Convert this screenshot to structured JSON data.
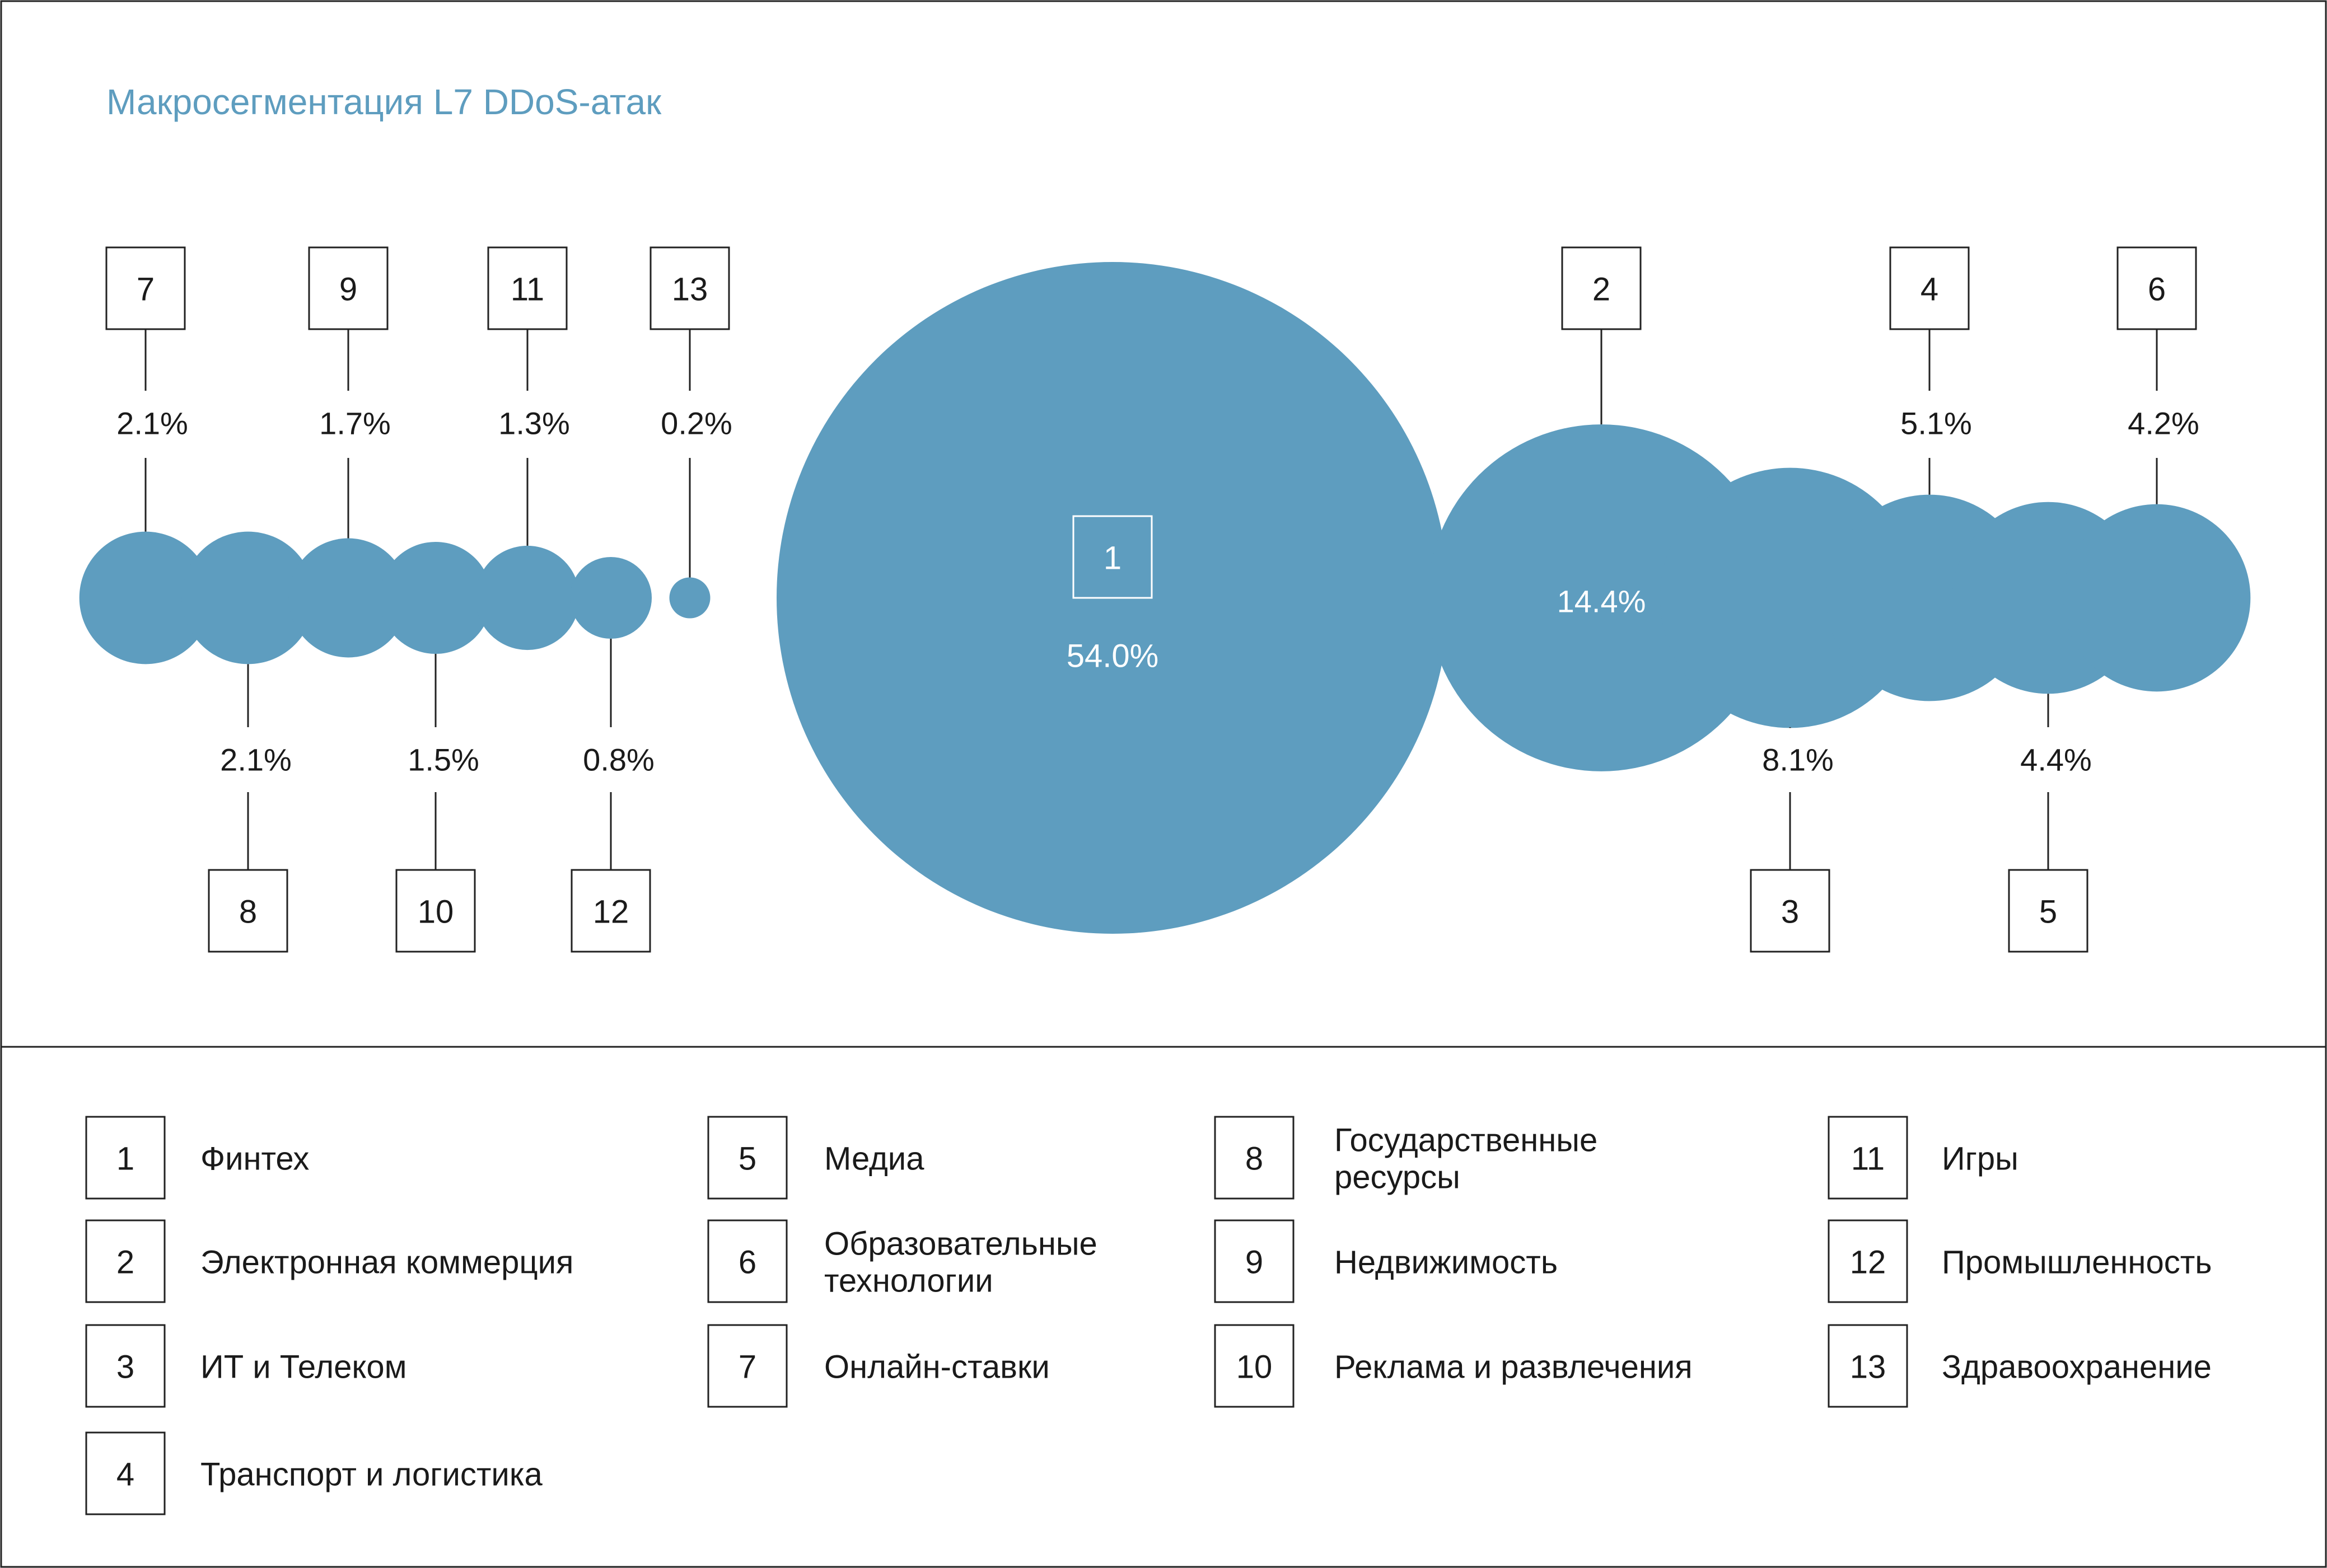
{
  "title": "Макросегментация L7 DDoS-атак",
  "colors": {
    "accent": "#5e9dbf",
    "frame": "#222222",
    "text": "#1a1a1a",
    "bubble_text": "#ffffff",
    "background": "#ffffff"
  },
  "chart_data": {
    "type": "bubble",
    "title": "Макросегментация L7 DDoS-атак",
    "unit": "%",
    "series": [
      {
        "id": "1",
        "value": 54.0,
        "label": "54.0%"
      },
      {
        "id": "2",
        "value": 14.4,
        "label": "14.4%"
      },
      {
        "id": "3",
        "value": 8.1,
        "label": "8.1%"
      },
      {
        "id": "4",
        "value": 5.1,
        "label": "5.1%"
      },
      {
        "id": "5",
        "value": 4.4,
        "label": "4.4%"
      },
      {
        "id": "6",
        "value": 4.2,
        "label": "4.2%"
      },
      {
        "id": "7",
        "value": 2.1,
        "label": "2.1%"
      },
      {
        "id": "8",
        "value": 2.1,
        "label": "2.1%"
      },
      {
        "id": "9",
        "value": 1.7,
        "label": "1.7%"
      },
      {
        "id": "10",
        "value": 1.5,
        "label": "1.5%"
      },
      {
        "id": "11",
        "value": 1.3,
        "label": "1.3%"
      },
      {
        "id": "12",
        "value": 0.8,
        "label": "0.8%"
      },
      {
        "id": "13",
        "value": 0.2,
        "label": "0.2%"
      }
    ]
  },
  "legend": [
    {
      "id": "1",
      "lines": [
        "Финтех"
      ]
    },
    {
      "id": "2",
      "lines": [
        "Электронная коммерция"
      ]
    },
    {
      "id": "3",
      "lines": [
        "ИТ и Телеком"
      ]
    },
    {
      "id": "4",
      "lines": [
        "Транспорт и логистика"
      ]
    },
    {
      "id": "5",
      "lines": [
        "Медиа"
      ]
    },
    {
      "id": "6",
      "lines": [
        "Образовательные",
        "технологии"
      ]
    },
    {
      "id": "7",
      "lines": [
        "Онлайн-ставки"
      ]
    },
    {
      "id": "8",
      "lines": [
        "Государственные",
        "ресурсы"
      ]
    },
    {
      "id": "9",
      "lines": [
        "Недвижимость"
      ]
    },
    {
      "id": "10",
      "lines": [
        "Реклама и развлечения"
      ]
    },
    {
      "id": "11",
      "lines": [
        "Игры"
      ]
    },
    {
      "id": "12",
      "lines": [
        "Промышленность"
      ]
    },
    {
      "id": "13",
      "lines": [
        "Здравоохранение"
      ]
    }
  ]
}
